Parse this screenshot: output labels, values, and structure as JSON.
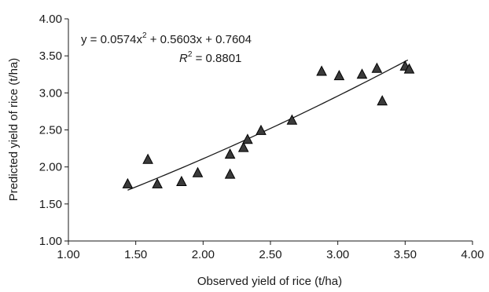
{
  "chart_data": {
    "type": "scatter",
    "xlabel": "Observed yield of rice (t/ha)",
    "ylabel": "Predicted yield of rice (t/ha)",
    "xlim": [
      1.0,
      4.0
    ],
    "ylim": [
      1.0,
      4.0
    ],
    "x_ticks": [
      "1.00",
      "1.50",
      "2.00",
      "2.50",
      "3.00",
      "3.50",
      "4.00"
    ],
    "y_ticks": [
      "1.00",
      "1.50",
      "2.00",
      "2.50",
      "3.00",
      "3.50",
      "4.00"
    ],
    "grid": false,
    "legend": "none",
    "marker": "triangle",
    "marker_color": "#3a3a3a",
    "points": [
      {
        "x": 1.44,
        "y": 1.77
      },
      {
        "x": 1.59,
        "y": 2.1
      },
      {
        "x": 1.66,
        "y": 1.77
      },
      {
        "x": 1.84,
        "y": 1.8
      },
      {
        "x": 1.96,
        "y": 1.92
      },
      {
        "x": 2.2,
        "y": 2.17
      },
      {
        "x": 2.2,
        "y": 1.9
      },
      {
        "x": 2.3,
        "y": 2.26
      },
      {
        "x": 2.33,
        "y": 2.37
      },
      {
        "x": 2.43,
        "y": 2.49
      },
      {
        "x": 2.66,
        "y": 2.63
      },
      {
        "x": 2.88,
        "y": 3.29
      },
      {
        "x": 3.01,
        "y": 3.23
      },
      {
        "x": 3.18,
        "y": 3.25
      },
      {
        "x": 3.29,
        "y": 3.33
      },
      {
        "x": 3.33,
        "y": 2.89
      },
      {
        "x": 3.5,
        "y": 3.36
      },
      {
        "x": 3.53,
        "y": 3.32
      }
    ],
    "trendline": {
      "type": "polynomial",
      "a": 0.0574,
      "b": 0.5603,
      "c": 0.7604,
      "x_start": 1.44,
      "x_end": 3.52
    },
    "annotations": {
      "equation_prefix": "y = 0.0574x",
      "equation_exp": "2",
      "equation_suffix": " + 0.5603x + 0.7604",
      "r2_letter": "R",
      "r2_exp": "2",
      "r2_suffix": " = 0.8801"
    }
  }
}
